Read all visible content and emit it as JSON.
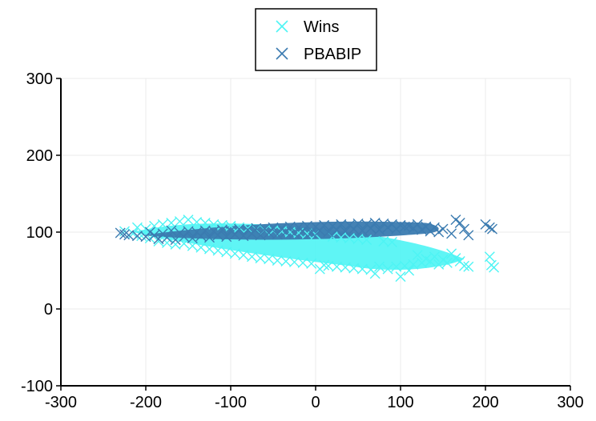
{
  "chart_data": {
    "type": "scatter",
    "title": "",
    "xlabel": "",
    "ylabel": "",
    "xlim": [
      -300,
      300
    ],
    "ylim": [
      -100,
      300
    ],
    "x_ticks": [
      -300,
      -200,
      -100,
      0,
      100,
      200,
      300
    ],
    "y_ticks": [
      -100,
      0,
      100,
      200,
      300
    ],
    "x_tick_labels": [
      "-300",
      "-200",
      "-100",
      "0",
      "100",
      "200",
      "300"
    ],
    "y_tick_labels": [
      "-100",
      "0",
      "100",
      "200",
      "300"
    ],
    "grid": true,
    "legend_position": "top-center",
    "marker": "x",
    "series": [
      {
        "name": "Wins",
        "color": "#4ef4f4",
        "points": [
          [
            -225,
            101
          ],
          [
            -215,
            98
          ],
          [
            -210,
            106
          ],
          [
            -205,
            95
          ],
          [
            -200,
            104
          ],
          [
            -195,
            92
          ],
          [
            -190,
            108
          ],
          [
            -185,
            88
          ],
          [
            -180,
            110
          ],
          [
            -175,
            86
          ],
          [
            -170,
            112
          ],
          [
            -165,
            84
          ],
          [
            -160,
            114
          ],
          [
            -155,
            85
          ],
          [
            -150,
            116
          ],
          [
            -145,
            82
          ],
          [
            -140,
            113
          ],
          [
            -135,
            80
          ],
          [
            -130,
            112
          ],
          [
            -125,
            78
          ],
          [
            -120,
            110
          ],
          [
            -115,
            76
          ],
          [
            -110,
            109
          ],
          [
            -105,
            74
          ],
          [
            -100,
            108
          ],
          [
            -95,
            72
          ],
          [
            -90,
            106
          ],
          [
            -85,
            70
          ],
          [
            -80,
            105
          ],
          [
            -75,
            68
          ],
          [
            -70,
            104
          ],
          [
            -65,
            66
          ],
          [
            -60,
            103
          ],
          [
            -55,
            65
          ],
          [
            -50,
            102
          ],
          [
            -45,
            63
          ],
          [
            -40,
            101
          ],
          [
            -35,
            62
          ],
          [
            -30,
            100
          ],
          [
            -25,
            61
          ],
          [
            -20,
            99
          ],
          [
            -15,
            60
          ],
          [
            -10,
            98
          ],
          [
            -5,
            59
          ],
          [
            0,
            97
          ],
          [
            5,
            52
          ],
          [
            10,
            57
          ],
          [
            15,
            56
          ],
          [
            20,
            94
          ],
          [
            25,
            55
          ],
          [
            30,
            93
          ],
          [
            35,
            54
          ],
          [
            40,
            92
          ],
          [
            45,
            53
          ],
          [
            50,
            91
          ],
          [
            55,
            52
          ],
          [
            60,
            90
          ],
          [
            65,
            51
          ],
          [
            70,
            46
          ],
          [
            75,
            55
          ],
          [
            80,
            88
          ],
          [
            85,
            52
          ],
          [
            90,
            87
          ],
          [
            95,
            55
          ],
          [
            100,
            42
          ],
          [
            105,
            56
          ],
          [
            110,
            50
          ],
          [
            115,
            58
          ],
          [
            120,
            70
          ],
          [
            125,
            60
          ],
          [
            130,
            65
          ],
          [
            135,
            62
          ],
          [
            140,
            68
          ],
          [
            145,
            58
          ],
          [
            150,
            64
          ],
          [
            155,
            60
          ],
          [
            160,
            72
          ],
          [
            165,
            66
          ],
          [
            170,
            62
          ],
          [
            175,
            56
          ],
          [
            180,
            55
          ],
          [
            205,
            68
          ],
          [
            207,
            57
          ],
          [
            210,
            54
          ]
        ]
      },
      {
        "name": "PBABIP",
        "color": "#3b7bb0",
        "points": [
          [
            -230,
            99
          ],
          [
            -225,
            97
          ],
          [
            -220,
            96
          ],
          [
            -210,
            95
          ],
          [
            -200,
            94
          ],
          [
            -195,
            100
          ],
          [
            -190,
            96
          ],
          [
            -185,
            91
          ],
          [
            -180,
            98
          ],
          [
            -175,
            93
          ],
          [
            -170,
            102
          ],
          [
            -165,
            90
          ],
          [
            -160,
            99
          ],
          [
            -155,
            94
          ],
          [
            -150,
            101
          ],
          [
            -145,
            92
          ],
          [
            -140,
            100
          ],
          [
            -135,
            95
          ],
          [
            -130,
            102
          ],
          [
            -125,
            93
          ],
          [
            -120,
            101
          ],
          [
            -115,
            96
          ],
          [
            -110,
            103
          ],
          [
            -105,
            94
          ],
          [
            -100,
            102
          ],
          [
            -95,
            97
          ],
          [
            -90,
            104
          ],
          [
            -85,
            95
          ],
          [
            -80,
            103
          ],
          [
            -75,
            98
          ],
          [
            -70,
            105
          ],
          [
            -65,
            96
          ],
          [
            -60,
            104
          ],
          [
            -55,
            99
          ],
          [
            -50,
            106
          ],
          [
            -45,
            97
          ],
          [
            -40,
            105
          ],
          [
            -35,
            100
          ],
          [
            -30,
            107
          ],
          [
            -25,
            98
          ],
          [
            -20,
            106
          ],
          [
            -15,
            101
          ],
          [
            -10,
            108
          ],
          [
            -5,
            99
          ],
          [
            0,
            107
          ],
          [
            5,
            102
          ],
          [
            10,
            109
          ],
          [
            15,
            100
          ],
          [
            20,
            108
          ],
          [
            25,
            103
          ],
          [
            30,
            110
          ],
          [
            35,
            101
          ],
          [
            40,
            109
          ],
          [
            45,
            104
          ],
          [
            50,
            111
          ],
          [
            55,
            102
          ],
          [
            60,
            110
          ],
          [
            65,
            105
          ],
          [
            70,
            112
          ],
          [
            75,
            103
          ],
          [
            80,
            111
          ],
          [
            85,
            106
          ],
          [
            90,
            110
          ],
          [
            95,
            104
          ],
          [
            100,
            109
          ],
          [
            105,
            107
          ],
          [
            110,
            108
          ],
          [
            115,
            105
          ],
          [
            120,
            110
          ],
          [
            125,
            103
          ],
          [
            130,
            107
          ],
          [
            135,
            101
          ],
          [
            140,
            106
          ],
          [
            145,
            100
          ],
          [
            150,
            104
          ],
          [
            160,
            98
          ],
          [
            165,
            116
          ],
          [
            170,
            112
          ],
          [
            175,
            104
          ],
          [
            180,
            96
          ],
          [
            200,
            110
          ],
          [
            205,
            106
          ],
          [
            208,
            104
          ]
        ]
      }
    ]
  }
}
